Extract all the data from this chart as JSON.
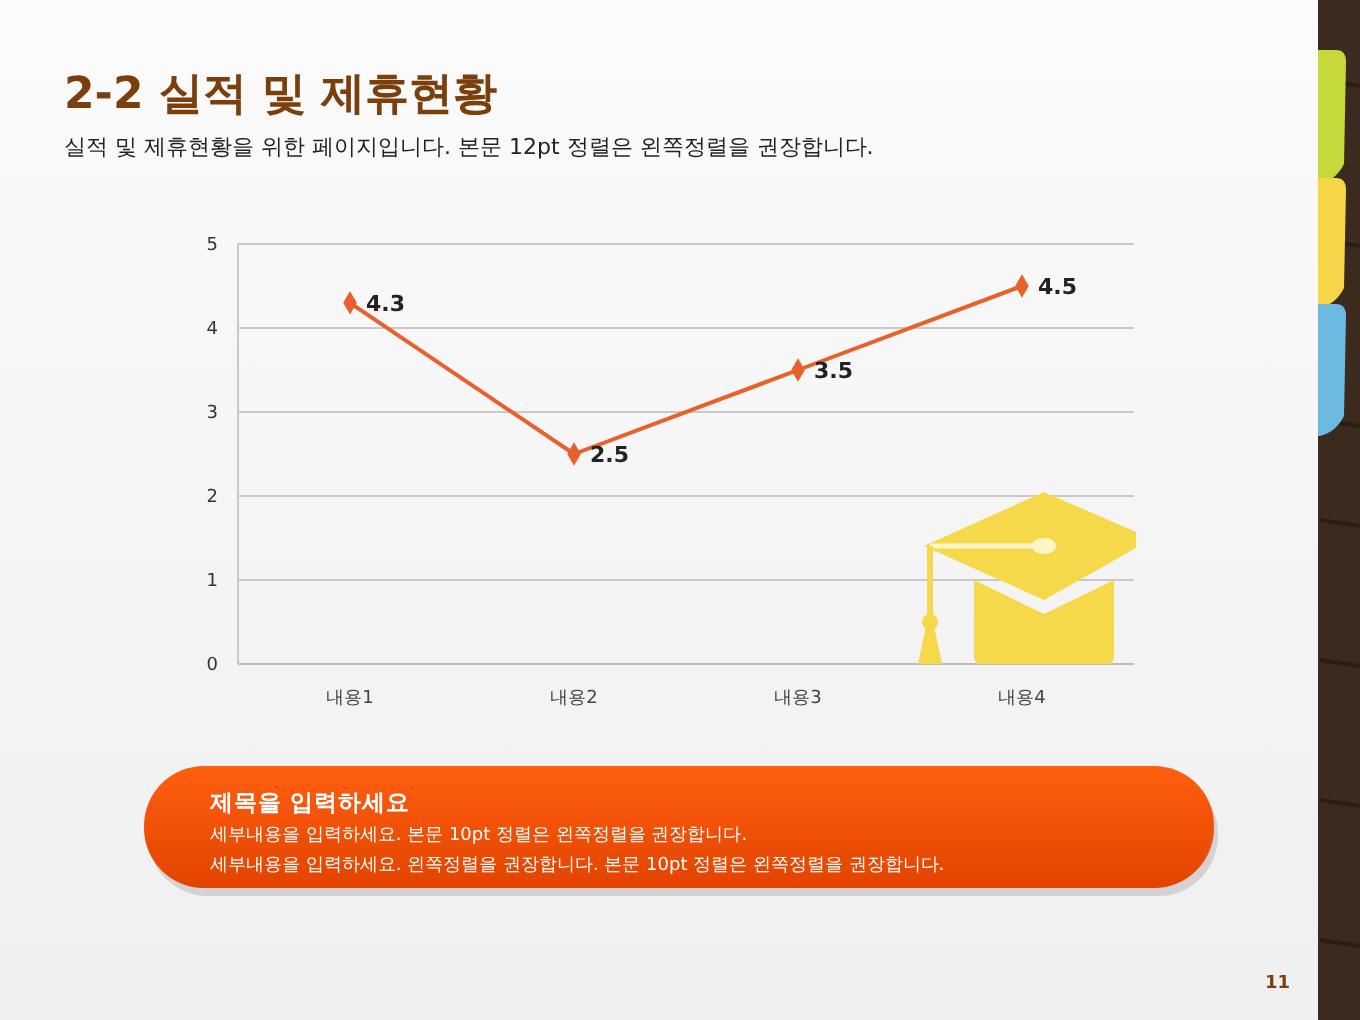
{
  "chart_data": {
    "type": "line",
    "title": "2-2 실적 및 제휴현황",
    "subtitle": "실적 및 제휴현황을 위한 페이지입니다. 본문 12pt 정렬은 왼쪽정렬을 권장합니다.",
    "categories": [
      "내용1",
      "내용2",
      "내용3",
      "내용4"
    ],
    "series": [
      {
        "color": "#e8602c",
        "values": [
          4.3,
          2.5,
          3.5,
          4.5
        ]
      }
    ],
    "ylim": [
      0,
      5
    ],
    "yticks": [
      0,
      1,
      2,
      3,
      4,
      5
    ],
    "grid": "y",
    "marker": "diamond",
    "data_labels": true,
    "annotations": [
      "제목을 입력하세요",
      "세부내용을 입력하세요. 본문 10pt 정렬은 왼쪽정렬을 권장합니다.",
      "세부내용을 입력하세요. 왼쪽정렬을 권장합니다. 본문 10pt 정렬은 왼쪽정렬을 권장합니다.",
      "11"
    ]
  }
}
